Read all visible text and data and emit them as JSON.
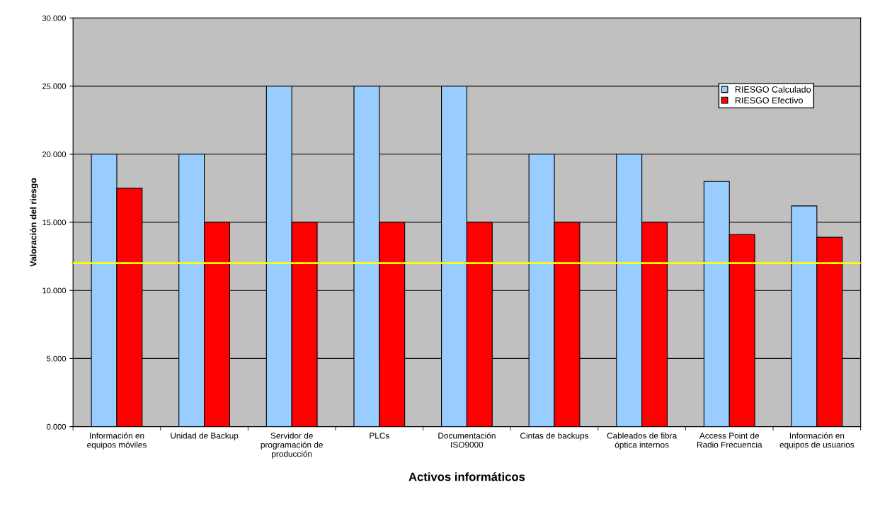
{
  "chart_data": {
    "type": "bar",
    "xlabel": "Activos informáticos",
    "ylabel": "Valoración del riesgo",
    "categories": [
      "Información en\nequipos móviles",
      "Unidad de Backup",
      "Servidor de\nprogramación de\nproducción",
      "PLCs",
      "Documentación\nISO9000",
      "Cintas de backups",
      "Cableados de fibra\nóptica internos",
      "Access Point de\nRadio Frecuencia",
      "Información en\nequipos de usuarios"
    ],
    "series": [
      {
        "name": "RIESGO Calculado",
        "color": "#99ccff",
        "values": [
          20,
          20,
          25,
          25,
          25,
          20,
          20,
          18,
          16.2
        ]
      },
      {
        "name": "RIESGO Efectivo",
        "color": "#ff0000",
        "values": [
          17.5,
          15,
          15,
          15,
          15,
          15,
          15,
          14.1,
          13.9
        ]
      }
    ],
    "ylim": [
      0,
      30
    ],
    "yticks": [
      {
        "value": 0,
        "label": "0.000"
      },
      {
        "value": 5,
        "label": "5.000"
      },
      {
        "value": 10,
        "label": "10.000"
      },
      {
        "value": 15,
        "label": "15.000"
      },
      {
        "value": 20,
        "label": "20.000"
      },
      {
        "value": 25,
        "label": "25.000"
      },
      {
        "value": 30,
        "label": "30.000"
      }
    ],
    "ref_lines": [
      {
        "axis": "y",
        "value": 12,
        "color": "#ffff00"
      }
    ],
    "grid": "y",
    "legend": "top right"
  }
}
